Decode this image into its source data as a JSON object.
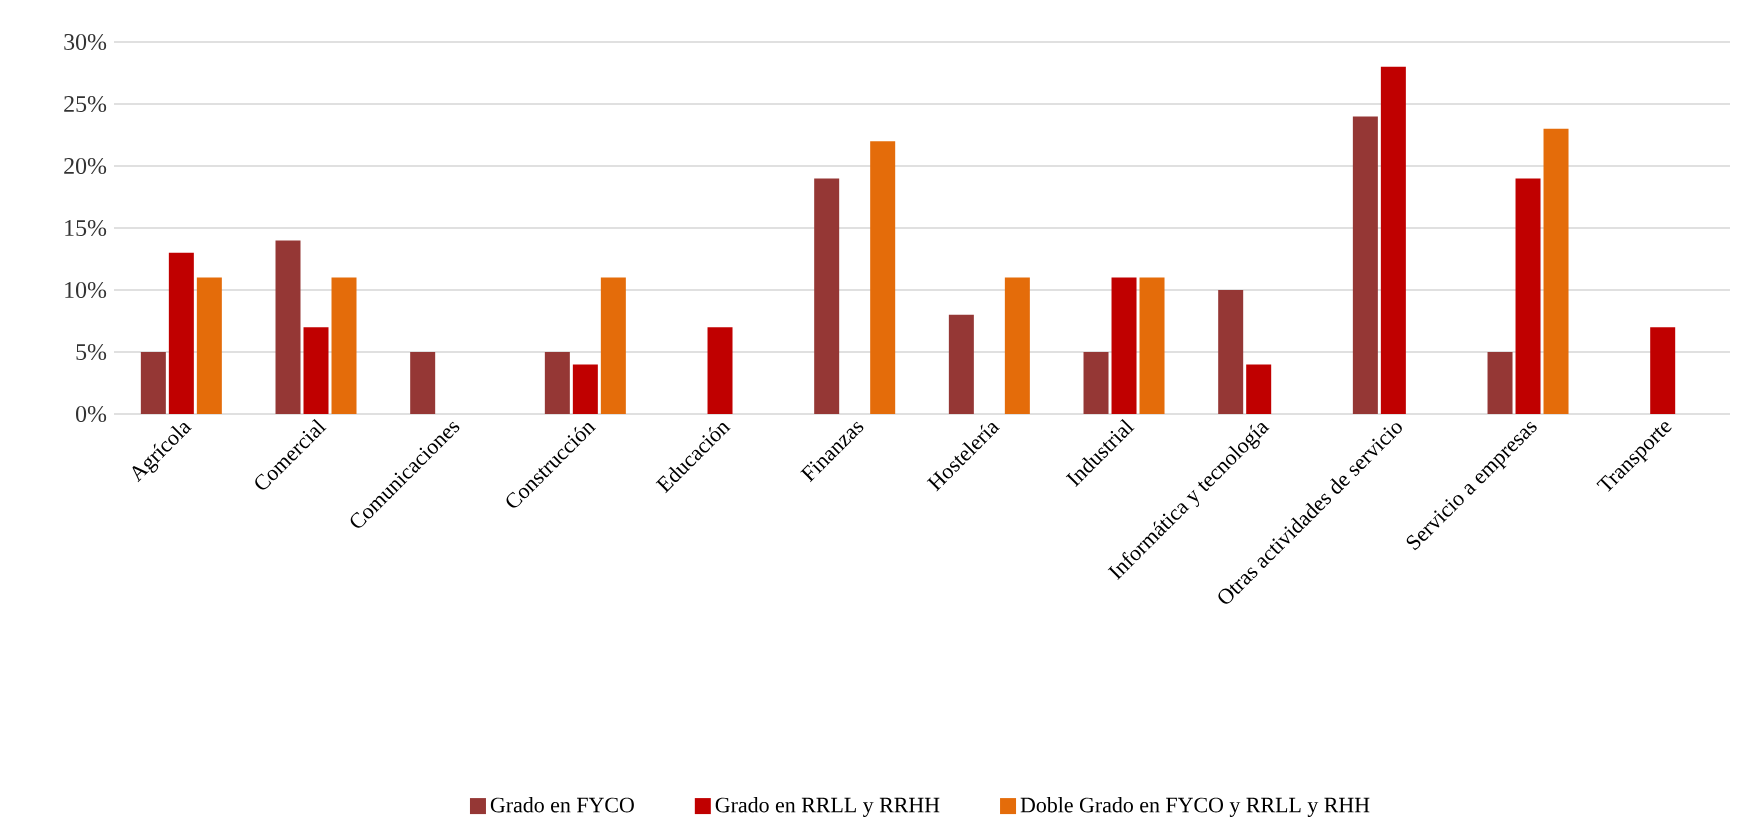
{
  "chart_data": {
    "type": "bar",
    "categories": [
      "Agrícola",
      "Comercial",
      "Comunicaciones",
      "Construcción",
      "Educación",
      "Finanzas",
      "Hostelería",
      "Industrial",
      "Informática y tecnología",
      "Otras actividades de servicio",
      "Servicio a empresas",
      "Transporte"
    ],
    "series": [
      {
        "name": "Grado en FYCO",
        "color": "#953735",
        "values": [
          5,
          14,
          5,
          5,
          null,
          19,
          8,
          5,
          10,
          24,
          5,
          null
        ]
      },
      {
        "name": "Grado en RRLL y RRHH",
        "color": "#c00000",
        "values": [
          13,
          7,
          null,
          4,
          7,
          null,
          null,
          11,
          4,
          28,
          19,
          7
        ]
      },
      {
        "name": "Doble Grado en FYCO y RRLL y RHH",
        "color": "#e46c0a",
        "values": [
          11,
          11,
          null,
          11,
          null,
          22,
          11,
          11,
          null,
          null,
          23,
          null
        ]
      }
    ],
    "ylim": [
      0,
      30
    ],
    "yticks": [
      {
        "value": 0,
        "label": "0%"
      },
      {
        "value": 5,
        "label": "5%"
      },
      {
        "value": 10,
        "label": "10%"
      },
      {
        "value": 15,
        "label": "15%"
      },
      {
        "value": 20,
        "label": "20%"
      },
      {
        "value": 25,
        "label": "25%"
      },
      {
        "value": 30,
        "label": "30%"
      }
    ],
    "grid": "y",
    "legend": "bottom"
  }
}
